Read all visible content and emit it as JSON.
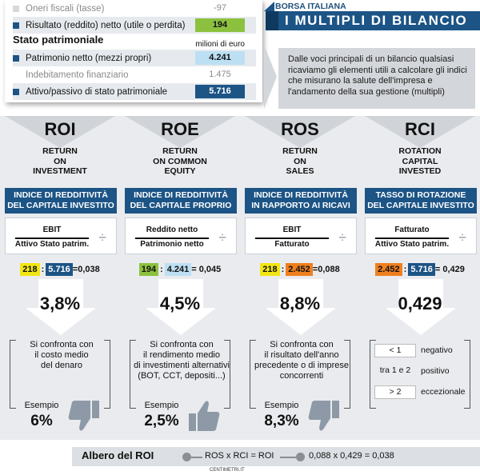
{
  "header": {
    "brand": "BORSA ITALIANA",
    "title": "I MULTIPLI DI BILANCIO"
  },
  "statement": {
    "rows_top": [
      {
        "label": "Oneri fiscali (tasse)",
        "value": "-97"
      },
      {
        "label": "Risultato (reddito) netto (utile o perdita)",
        "value": "194",
        "color": "#8cc13f"
      }
    ],
    "section_title": "Stato patrimoniale",
    "unit": "milioni di euro",
    "rows_bottom": [
      {
        "label": "Patrimonio netto (mezzi propri)",
        "value": "4.241",
        "color": "#bcdff3"
      },
      {
        "label": "Indebitamento finanziario",
        "value": "1.475"
      },
      {
        "label": "Attivo/passivo di stato patrimoniale",
        "value": "5.716",
        "color": "#1c5486"
      }
    ]
  },
  "intro": "Dalle voci principali di un bilancio qualsiasi ricaviamo gli elementi utili a calcolare gli indici che misurano la salute dell'impresa e l'andamento della sua gestione (multipli)",
  "columns": [
    {
      "acronym": "ROI",
      "full": [
        "RETURN",
        "ON",
        "INVESTMENT"
      ],
      "index": [
        "INDICE DI REDDITIVITÀ",
        "DEL CAPITALE INVESTITO"
      ],
      "numerator": "EBIT",
      "denominator": "Attivo Stato patrim.",
      "calc": {
        "a": "218",
        "b": "5.716",
        "result": "=0,038"
      },
      "big": "3,8%",
      "compare": [
        "Si confronta con",
        "il costo medio",
        "del denaro"
      ],
      "example_label": "Esempio",
      "example_value": "6%"
    },
    {
      "acronym": "ROE",
      "full": [
        "RETURN",
        "ON COMMON",
        "EQUITY"
      ],
      "index": [
        "INDICE DI REDDITIVITÀ",
        "DEL CAPITALE PROPRIO"
      ],
      "numerator": "Reddito netto",
      "denominator": "Patrimonio netto",
      "calc": {
        "a": "194",
        "b": "4.241",
        "result": "= 0,045"
      },
      "big": "4,5%",
      "compare": [
        "Si confronta con",
        "il rendimento medio",
        "di investimenti alternativi",
        "(BOT, CCT, depositi...)"
      ],
      "example_label": "Esempio",
      "example_value": "2,5%"
    },
    {
      "acronym": "ROS",
      "full": [
        "RETURN",
        "ON",
        "SALES"
      ],
      "index": [
        "INDICE DI REDDITIVITÀ",
        "IN RAPPORTO AI RICAVI"
      ],
      "numerator": "EBIT",
      "denominator": "Fatturato",
      "calc": {
        "a": "218",
        "b": "2.452",
        "result": "=0,088"
      },
      "big": "8,8%",
      "compare": [
        "Si confronta con",
        "il risultato dell'anno",
        "precedente o di imprese",
        "concorrenti"
      ],
      "example_label": "Esempio",
      "example_value": "8,3%"
    },
    {
      "acronym": "RCI",
      "full": [
        "ROTATION",
        "CAPITAL",
        "INVESTED"
      ],
      "index": [
        "TASSO DI ROTAZIONE",
        "DEL CAPITALE INVESTITO"
      ],
      "numerator": "Fatturato",
      "denominator": "Attivo Stato patrim.",
      "calc": {
        "a": "2.452",
        "b": "5.716",
        "result": "= 0,429"
      },
      "big": "0,429",
      "scale": [
        {
          "range": "< 1",
          "label": "negativo"
        },
        {
          "range": "tra 1 e 2",
          "label": "positivo"
        },
        {
          "range": "> 2",
          "label": "eccezionale"
        }
      ]
    }
  ],
  "footer": {
    "title": "Albero del ROI",
    "formula": "ROS x RCI = ROI",
    "result": "0,088 x 0,429 = 0,038",
    "credit": "CENTIMETRI.IT"
  },
  "colors": {
    "blue": "#1c5486",
    "yellow": "#f2e613",
    "orange": "#f07f1e",
    "green": "#8cc13f",
    "light_blue": "#bcdff3",
    "band": "#e9ebee"
  }
}
